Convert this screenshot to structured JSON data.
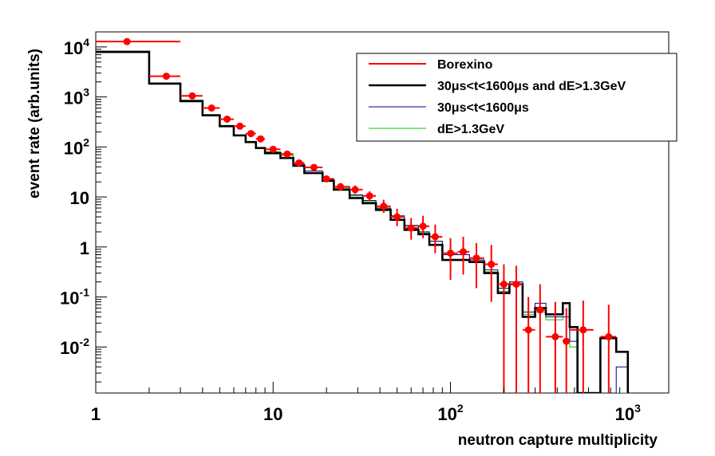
{
  "chart_data": {
    "type": "line",
    "title": "",
    "xlabel": "neutron capture multiplicity",
    "ylabel": "event rate (arb.units)",
    "xscale": "log",
    "yscale": "log",
    "xlim": [
      1,
      1700
    ],
    "ylim": [
      0.0012,
      20000
    ],
    "grid": false,
    "legend_position": "top-right",
    "x_ticks": [
      {
        "value": 1,
        "base": "1",
        "exp": ""
      },
      {
        "value": 10,
        "base": "10",
        "exp": ""
      },
      {
        "value": 100,
        "base": "10",
        "exp": "2"
      },
      {
        "value": 1000,
        "base": "10",
        "exp": "3"
      }
    ],
    "y_ticks": [
      {
        "value": 10000,
        "base": "10",
        "exp": "4"
      },
      {
        "value": 1000,
        "base": "10",
        "exp": "3"
      },
      {
        "value": 100,
        "base": "10",
        "exp": "2"
      },
      {
        "value": 10,
        "base": "10",
        "exp": ""
      },
      {
        "value": 1,
        "base": "1",
        "exp": ""
      },
      {
        "value": 0.1,
        "base": "10",
        "exp": "-1"
      },
      {
        "value": 0.01,
        "base": "10",
        "exp": "-2"
      }
    ],
    "series": [
      {
        "name": "Borexino",
        "kind": "points",
        "color": "#ff0000",
        "points": [
          {
            "x": 1.5,
            "y": 12800,
            "xlo": 1,
            "xhi": 3,
            "ylo": 12000,
            "yhi": 13600
          },
          {
            "x": 2.5,
            "y": 2600,
            "xlo": 2,
            "xhi": 3,
            "ylo": 2450,
            "yhi": 2750
          },
          {
            "x": 3.5,
            "y": 1050,
            "xlo": 3,
            "xhi": 4,
            "ylo": 980,
            "yhi": 1120
          },
          {
            "x": 4.5,
            "y": 600,
            "xlo": 4,
            "xhi": 5,
            "ylo": 560,
            "yhi": 640
          },
          {
            "x": 5.5,
            "y": 360,
            "xlo": 5,
            "xhi": 6,
            "ylo": 335,
            "yhi": 385
          },
          {
            "x": 6.5,
            "y": 260,
            "xlo": 6,
            "xhi": 7,
            "ylo": 240,
            "yhi": 280
          },
          {
            "x": 7.5,
            "y": 185,
            "xlo": 7,
            "xhi": 8,
            "ylo": 170,
            "yhi": 200
          },
          {
            "x": 8.5,
            "y": 145,
            "xlo": 8,
            "xhi": 9,
            "ylo": 132,
            "yhi": 158
          },
          {
            "x": 10,
            "y": 90,
            "xlo": 9,
            "xhi": 11,
            "ylo": 82,
            "yhi": 98
          },
          {
            "x": 12,
            "y": 72,
            "xlo": 11,
            "xhi": 13,
            "ylo": 65,
            "yhi": 79
          },
          {
            "x": 14,
            "y": 48,
            "xlo": 13,
            "xhi": 15,
            "ylo": 43,
            "yhi": 53
          },
          {
            "x": 17,
            "y": 39,
            "xlo": 15,
            "xhi": 19,
            "ylo": 35,
            "yhi": 43
          },
          {
            "x": 20,
            "y": 23,
            "xlo": 19,
            "xhi": 22,
            "ylo": 20,
            "yhi": 26
          },
          {
            "x": 24,
            "y": 16,
            "xlo": 22,
            "xhi": 27,
            "ylo": 13.5,
            "yhi": 19
          },
          {
            "x": 29,
            "y": 14,
            "xlo": 27,
            "xhi": 32,
            "ylo": 11.5,
            "yhi": 17
          },
          {
            "x": 35,
            "y": 10.5,
            "xlo": 32,
            "xhi": 38,
            "ylo": 8.5,
            "yhi": 13
          },
          {
            "x": 42,
            "y": 6.5,
            "xlo": 38,
            "xhi": 46,
            "ylo": 4.8,
            "yhi": 8.8
          },
          {
            "x": 50,
            "y": 4.0,
            "xlo": 46,
            "xhi": 55,
            "ylo": 2.6,
            "yhi": 5.8
          },
          {
            "x": 60,
            "y": 2.4,
            "xlo": 55,
            "xhi": 66,
            "ylo": 1.4,
            "yhi": 3.8
          },
          {
            "x": 70,
            "y": 2.6,
            "xlo": 66,
            "xhi": 76,
            "ylo": 1.5,
            "yhi": 4.2
          },
          {
            "x": 82,
            "y": 1.6,
            "xlo": 76,
            "xhi": 90,
            "ylo": 0.75,
            "yhi": 2.8
          },
          {
            "x": 100,
            "y": 0.75,
            "xlo": 90,
            "xhi": 110,
            "ylo": 0.22,
            "yhi": 1.5
          },
          {
            "x": 118,
            "y": 0.8,
            "xlo": 110,
            "xhi": 128,
            "ylo": 0.28,
            "yhi": 1.6
          },
          {
            "x": 140,
            "y": 0.6,
            "xlo": 128,
            "xhi": 155,
            "ylo": 0.15,
            "yhi": 1.2
          },
          {
            "x": 170,
            "y": 0.45,
            "xlo": 155,
            "xhi": 185,
            "ylo": 0.08,
            "yhi": 1.1
          },
          {
            "x": 200,
            "y": 0.18,
            "xlo": 185,
            "xhi": 215,
            "ylo": 0.0012,
            "yhi": 0.45
          },
          {
            "x": 235,
            "y": 0.18,
            "xlo": 215,
            "xhi": 255,
            "ylo": 0.0012,
            "yhi": 0.42
          },
          {
            "x": 275,
            "y": 0.022,
            "xlo": 255,
            "xhi": 300,
            "ylo": 0.0012,
            "yhi": 0.1
          },
          {
            "x": 320,
            "y": 0.055,
            "xlo": 300,
            "xhi": 345,
            "ylo": 0.0012,
            "yhi": 0.18
          },
          {
            "x": 390,
            "y": 0.016,
            "xlo": 345,
            "xhi": 430,
            "ylo": 0.0012,
            "yhi": 0.08
          },
          {
            "x": 450,
            "y": 0.013,
            "xlo": 430,
            "xhi": 470,
            "ylo": 0.0012,
            "yhi": 0.06
          },
          {
            "x": 560,
            "y": 0.022,
            "xlo": 470,
            "xhi": 640,
            "ylo": 0.0012,
            "yhi": 0.085
          },
          {
            "x": 780,
            "y": 0.016,
            "xlo": 700,
            "xhi": 860,
            "ylo": 0.0012,
            "yhi": 0.07
          }
        ]
      },
      {
        "name": "30μs<t<1600μs and dE>1.3GeV",
        "kind": "step",
        "color": "#000000",
        "edges": [
          1,
          2,
          3,
          4,
          5,
          6,
          7,
          8,
          9,
          11,
          13,
          15,
          19,
          22,
          27,
          32,
          38,
          46,
          55,
          66,
          76,
          90,
          110,
          128,
          155,
          185,
          215,
          255,
          300,
          345,
          430,
          470,
          520,
          640,
          700,
          860,
          1000
        ],
        "values": [
          8000,
          1850,
          830,
          430,
          260,
          170,
          125,
          95,
          75,
          60,
          42,
          30,
          21,
          14,
          9.5,
          7.5,
          5.5,
          3.5,
          2.2,
          1.8,
          1.1,
          0.55,
          0.55,
          0.5,
          0.3,
          0.12,
          0.18,
          0.04,
          0.06,
          0.045,
          0.075,
          0.025,
          0.0012,
          0.0012,
          0.015,
          0.008,
          0.0012
        ]
      },
      {
        "name": "30μs<t<1600μs",
        "kind": "step",
        "color": "#00008b",
        "edges": [
          1,
          2,
          3,
          4,
          5,
          6,
          7,
          8,
          9,
          11,
          13,
          15,
          19,
          22,
          27,
          32,
          38,
          46,
          55,
          66,
          76,
          90,
          110,
          128,
          155,
          185,
          215,
          255,
          300,
          345,
          430,
          470,
          520,
          640,
          700,
          860,
          1000
        ],
        "values": [
          7700,
          1800,
          800,
          420,
          260,
          170,
          125,
          95,
          78,
          62,
          45,
          33,
          23,
          16,
          11,
          8.5,
          6.0,
          4.2,
          2.7,
          2.0,
          1.3,
          0.7,
          0.7,
          0.55,
          0.35,
          0.15,
          0.2,
          0.05,
          0.075,
          0.04,
          0.04,
          0.013,
          0.0012,
          0.0012,
          0.0012,
          0.004,
          0.004
        ]
      },
      {
        "name": "dE>1.3GeV",
        "kind": "step",
        "color": "#00cc00",
        "edges": [
          1,
          2,
          3,
          4,
          5,
          6,
          7,
          8,
          9,
          11,
          13,
          15,
          19,
          22,
          27,
          32,
          38,
          46,
          55,
          66,
          76,
          90,
          110,
          128,
          155,
          185,
          215,
          255,
          300,
          345,
          430,
          470,
          520,
          640,
          700,
          860,
          1000
        ],
        "values": [
          7900,
          1900,
          860,
          440,
          270,
          175,
          130,
          95,
          80,
          68,
          42,
          33,
          22,
          15,
          10.5,
          8.0,
          5.8,
          3.4,
          2.6,
          1.9,
          1.3,
          0.7,
          0.7,
          0.55,
          0.32,
          0.13,
          0.2,
          0.045,
          0.05,
          0.035,
          0.04,
          0.01,
          0.0012,
          0.0012,
          0.0012,
          0.0012,
          0.0012
        ]
      }
    ]
  }
}
